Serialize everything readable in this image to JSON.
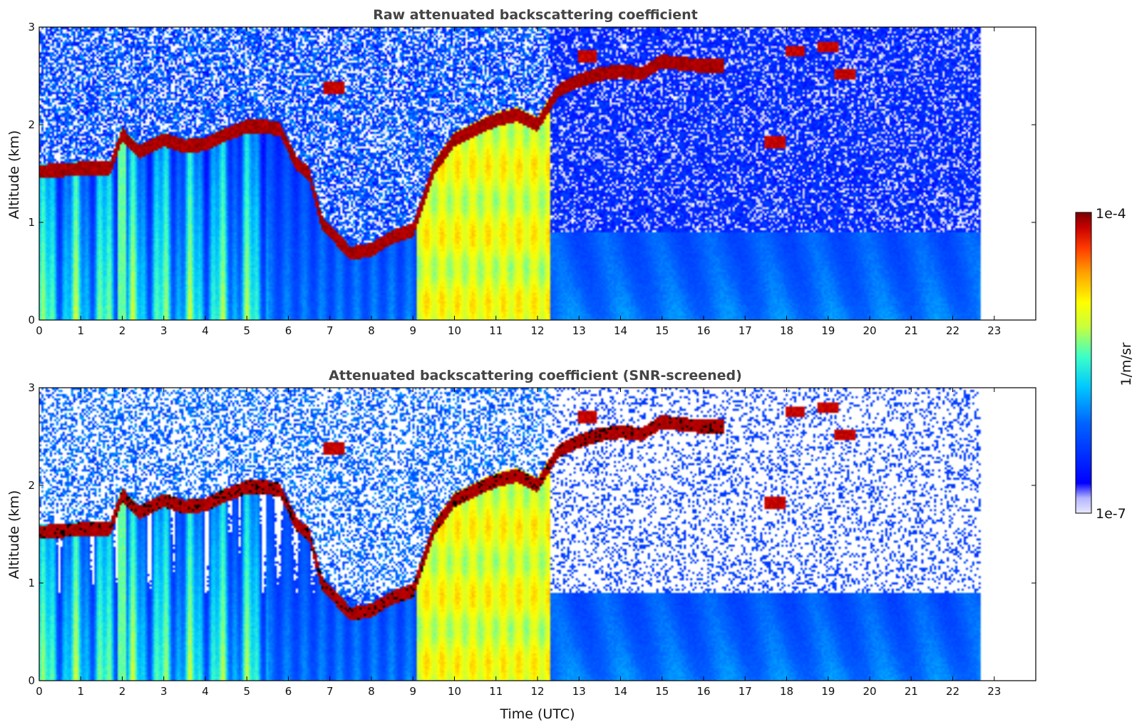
{
  "chart_data": [
    {
      "type": "heatmap",
      "title": "Raw attenuated backscattering coefficient",
      "xlabel": "",
      "ylabel": "Altitude (km)",
      "xlim": [
        0,
        24
      ],
      "ylim": [
        0,
        3
      ],
      "x_ticks": [
        "0",
        "1",
        "2",
        "3",
        "4",
        "5",
        "6",
        "7",
        "8",
        "9",
        "10",
        "11",
        "12",
        "13",
        "14",
        "15",
        "16",
        "17",
        "18",
        "19",
        "20",
        "21",
        "22",
        "23"
      ],
      "y_ticks": [
        "0",
        "1",
        "2",
        "3"
      ],
      "data_end_time": 22.65,
      "screened": false,
      "features": {
        "cloud_base_km": [
          [
            0,
            1.52
          ],
          [
            1,
            1.55
          ],
          [
            1.7,
            1.55
          ],
          [
            2,
            1.9
          ],
          [
            2.4,
            1.72
          ],
          [
            3,
            1.85
          ],
          [
            3.5,
            1.78
          ],
          [
            4,
            1.8
          ],
          [
            4.5,
            1.9
          ],
          [
            5,
            1.98
          ],
          [
            5.5,
            1.98
          ],
          [
            5.8,
            1.95
          ],
          [
            6.2,
            1.6
          ],
          [
            6.5,
            1.5
          ],
          [
            6.8,
            1.0
          ],
          [
            7.5,
            0.68
          ],
          [
            8,
            0.72
          ],
          [
            8.5,
            0.85
          ],
          [
            9,
            0.92
          ],
          [
            9.5,
            1.55
          ],
          [
            10,
            1.85
          ],
          [
            10.5,
            1.95
          ],
          [
            11,
            2.05
          ],
          [
            11.5,
            2.1
          ],
          [
            12,
            2.0
          ],
          [
            12.5,
            2.35
          ],
          [
            13,
            2.45
          ],
          [
            13.5,
            2.52
          ],
          [
            14,
            2.55
          ],
          [
            14.5,
            2.52
          ],
          [
            15,
            2.65
          ],
          [
            16,
            2.6
          ],
          [
            16.5,
            2.6
          ]
        ],
        "high_cloud_patches": [
          [
            7.1,
            2.38
          ],
          [
            13.2,
            2.7
          ],
          [
            17.7,
            1.82
          ],
          [
            18.2,
            2.75
          ],
          [
            19.0,
            2.8
          ],
          [
            19.4,
            2.52
          ]
        ],
        "rain_shafts": [
          [
            1.9,
            2.1
          ],
          [
            9.1,
            12.3
          ]
        ]
      }
    },
    {
      "type": "heatmap",
      "title": "Attenuated backscattering coefficient (SNR-screened)",
      "xlabel": "Time (UTC)",
      "ylabel": "Altitude (km)",
      "xlim": [
        0,
        24
      ],
      "ylim": [
        0,
        3
      ],
      "x_ticks": [
        "0",
        "1",
        "2",
        "3",
        "4",
        "5",
        "6",
        "7",
        "8",
        "9",
        "10",
        "11",
        "12",
        "13",
        "14",
        "15",
        "16",
        "17",
        "18",
        "19",
        "20",
        "21",
        "22",
        "23"
      ],
      "y_ticks": [
        "0",
        "1",
        "2",
        "3"
      ],
      "data_end_time": 22.65,
      "screened": true
    }
  ],
  "colorbar": {
    "label": "1/m/sr",
    "max_label": "1e-4",
    "min_label": "1e-7",
    "scale": "log",
    "range": [
      1e-07,
      0.0001
    ],
    "colormap": [
      "#e8e8ff",
      "#b4b4ff",
      "#0000ff",
      "#0064ff",
      "#00c8ff",
      "#3cffc8",
      "#c8ff3c",
      "#ffff00",
      "#ffa000",
      "#ff3c00",
      "#c80000",
      "#780000"
    ]
  }
}
